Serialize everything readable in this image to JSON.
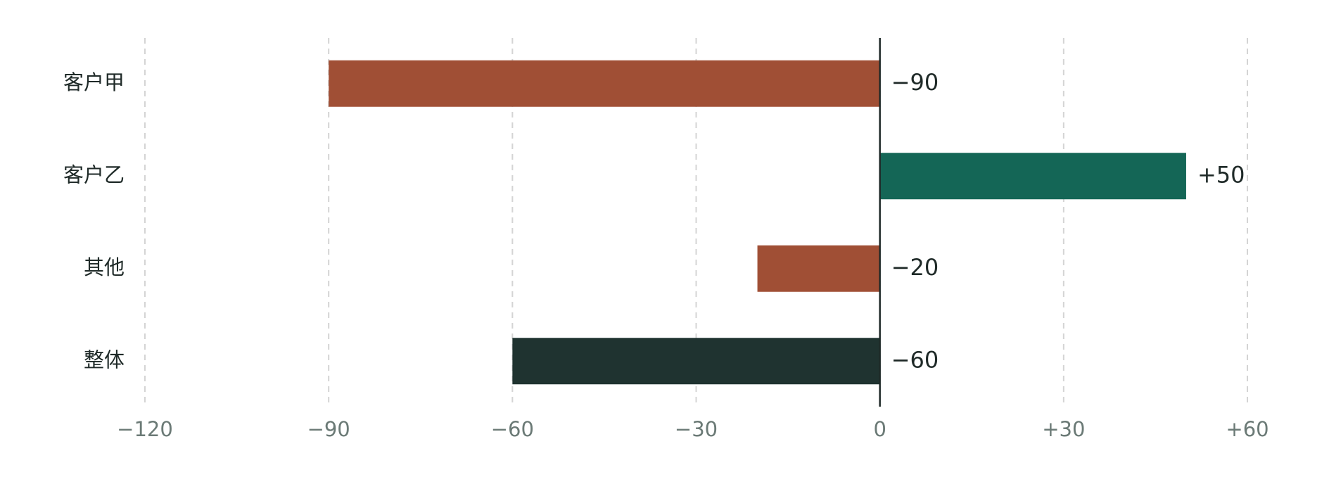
{
  "chart_data": {
    "type": "hbar",
    "categories": [
      "客户甲",
      "客户乙",
      "其他",
      "整体"
    ],
    "values": [
      -90,
      50,
      -20,
      -60
    ],
    "value_labels": [
      "−90",
      "+50",
      "−20",
      "−60"
    ],
    "colors": [
      "#a04f35",
      "#146656",
      "#a04f35",
      "#1f3330"
    ],
    "xlim": [
      -120,
      60
    ],
    "xticks": [
      {
        "value": -120,
        "label": "−120"
      },
      {
        "value": -90,
        "label": "−90"
      },
      {
        "value": -60,
        "label": "−60"
      },
      {
        "value": -30,
        "label": "−30"
      },
      0,
      {
        "value": 30,
        "label": "+30"
      },
      {
        "value": 60,
        "label": "+60"
      }
    ],
    "grid": true
  }
}
